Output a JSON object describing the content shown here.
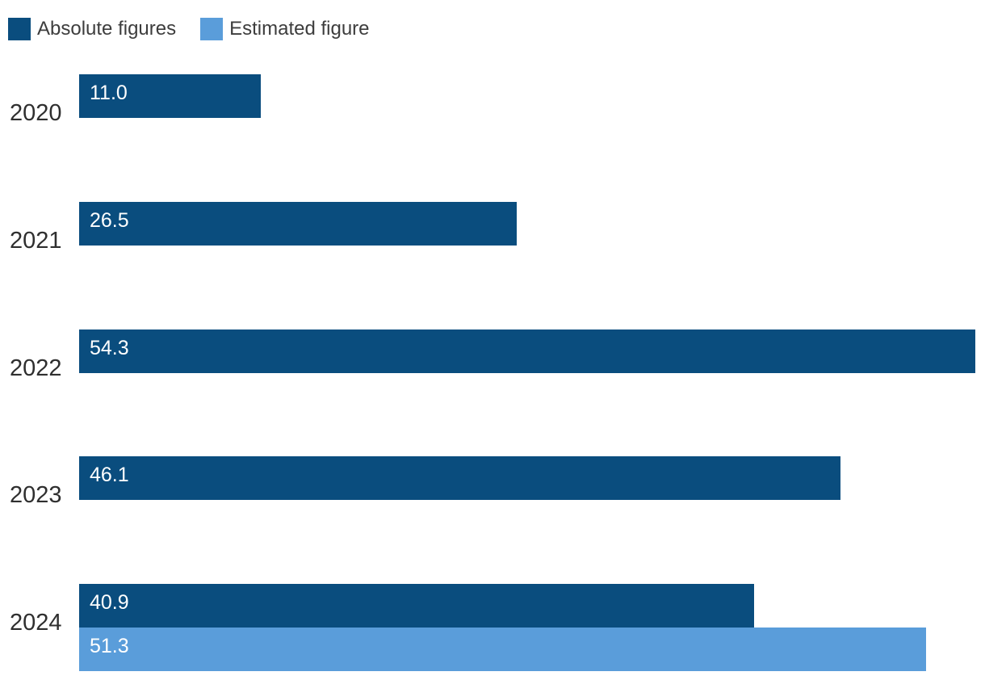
{
  "chart_data": {
    "type": "bar",
    "orientation": "horizontal",
    "title": "",
    "categories": [
      "2020",
      "2021",
      "2022",
      "2023",
      "2024"
    ],
    "series": [
      {
        "name": "Absolute figures",
        "color": "#0a4d7e",
        "values": [
          11.0,
          26.5,
          54.3,
          46.1,
          40.9
        ],
        "labels": [
          "11.0",
          "26.5",
          "54.3",
          "46.1",
          "40.9"
        ]
      },
      {
        "name": "Estimated figure",
        "color": "#5a9dda",
        "values": [
          null,
          null,
          null,
          null,
          51.3
        ],
        "labels": [
          null,
          null,
          null,
          null,
          "51.3"
        ]
      }
    ],
    "xlim": [
      0,
      54.65
    ],
    "grid": false,
    "legend_position": "top-left",
    "value_axis_visible": false
  },
  "legend": {
    "items": [
      {
        "label": "Absolute figures",
        "color": "#0a4d7e"
      },
      {
        "label": "Estimated figure",
        "color": "#5a9dda"
      }
    ]
  },
  "colors": {
    "background": "#ffffff",
    "category_text": "#2f2f2f",
    "legend_text": "#3d3d3d",
    "value_text": "#ffffff"
  }
}
